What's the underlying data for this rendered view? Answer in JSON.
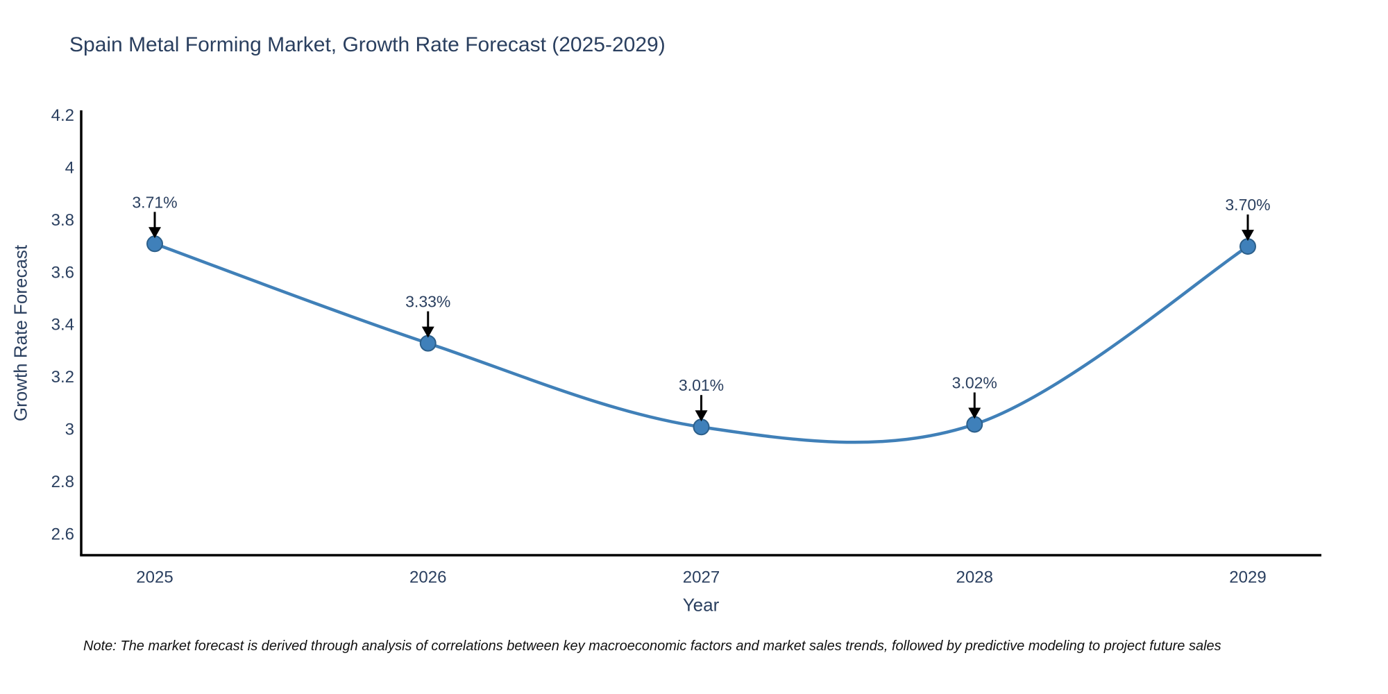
{
  "title": "Spain Metal Forming Market, Growth Rate Forecast (2025-2029)",
  "note": "Note: The market forecast is derived through analysis of correlations between key macroeconomic factors and market sales trends, followed by predictive modeling to project future sales",
  "chart_data": {
    "type": "line",
    "line_shape": "spline",
    "title": "Spain Metal Forming Market, Growth Rate Forecast (2025-2029)",
    "xlabel": "Year",
    "ylabel": "Growth Rate Forecast",
    "categories": [
      "2025",
      "2026",
      "2027",
      "2028",
      "2029"
    ],
    "values": [
      3.71,
      3.33,
      3.01,
      3.02,
      3.7
    ],
    "point_labels": [
      "3.71%",
      "3.33%",
      "3.01%",
      "3.02%",
      "3.70%"
    ],
    "ylim": [
      2.52,
      4.22
    ],
    "yticks": [
      "4.2",
      "4",
      "3.8",
      "3.6",
      "3.4",
      "3.2",
      "3",
      "2.8",
      "2.6"
    ],
    "ytick_values": [
      4.2,
      4.0,
      3.8,
      3.6,
      3.4,
      3.2,
      3.0,
      2.8,
      2.6
    ],
    "grid": false,
    "legend_position": "none",
    "markers": true,
    "annotation_arrows": true,
    "colors": {
      "line": "#4080b8",
      "marker_fill": "#3f80ba",
      "marker_edge": "#2c5f8a",
      "axis_line": "#000000",
      "text": "#2a3f5f",
      "arrow": "#000000",
      "note_text": "#111111",
      "background": "#ffffff"
    }
  }
}
